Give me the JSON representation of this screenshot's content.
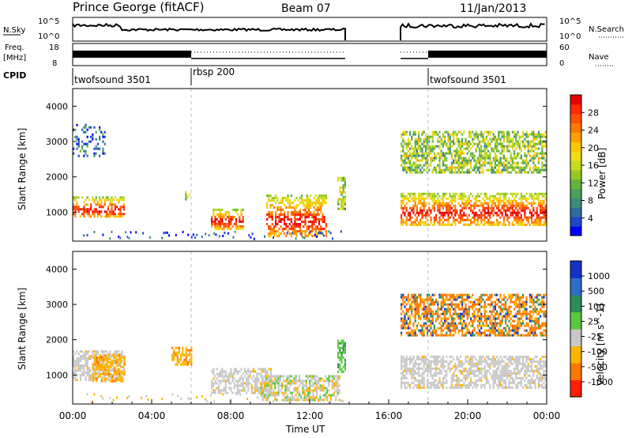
{
  "header": {
    "site": "Prince George (fitACF)",
    "beam": "Beam 07",
    "date": "11/Jan/2013"
  },
  "panels": {
    "nsky_label": "N.Sky",
    "nsearch_label": "N.Search",
    "freq_label_1": "Freq.",
    "freq_label_2": "[MHz]",
    "nave_label": "Nave",
    "cpid_label": "CPID",
    "nsky_ticks": [
      "10^5",
      "10^0"
    ],
    "nsearch_ticks": [
      "10^5",
      "10^0"
    ],
    "freq_ticks": [
      "18",
      "8"
    ],
    "nave_ticks": [
      "60",
      "0"
    ],
    "cpid_segments": [
      {
        "label": "twofsound 3501",
        "start_hr": 0
      },
      {
        "label": "rbsp 200",
        "start_hr": 6
      },
      {
        "label": "twofsound 3501",
        "start_hr": 18
      }
    ]
  },
  "chart_data": [
    {
      "type": "heatmap",
      "name": "power",
      "ylabel": "Slant Range [km]",
      "xlabel": "",
      "xlim": [
        0,
        24
      ],
      "ylim": [
        180,
        4500
      ],
      "yticks": [
        1000,
        2000,
        3000,
        4000
      ],
      "colorbar": {
        "label": "Power [dB]",
        "ticks": [
          "4",
          "8",
          "12",
          "16",
          "20",
          "24",
          "28"
        ],
        "range": [
          0,
          30
        ],
        "colors": [
          "#0000ff",
          "#1e46c8",
          "#2d6ea0",
          "#3c8c7d",
          "#4ba05a",
          "#64b43c",
          "#96c828",
          "#c8dc1e",
          "#f0dc14",
          "#ffc800",
          "#ffa000",
          "#ff7800",
          "#ff5000",
          "#ff2800",
          "#e60000"
        ]
      },
      "echo_regions": [
        {
          "t": [
            0.0,
            2.6
          ],
          "r": [
            850,
            1450
          ],
          "level": "high"
        },
        {
          "t": [
            0.0,
            1.6
          ],
          "r": [
            2600,
            3500
          ],
          "level": "low"
        },
        {
          "t": [
            5.6,
            5.9
          ],
          "r": [
            1350,
            1600
          ],
          "level": "mid"
        },
        {
          "t": [
            7.0,
            8.6
          ],
          "r": [
            550,
            1100
          ],
          "level": "high"
        },
        {
          "t": [
            9.8,
            12.8
          ],
          "r": [
            300,
            1500
          ],
          "level": "high"
        },
        {
          "t": [
            13.4,
            13.8
          ],
          "r": [
            1100,
            2000
          ],
          "level": "mid"
        },
        {
          "t": [
            16.6,
            24.0
          ],
          "r": [
            650,
            1550
          ],
          "level": "high"
        },
        {
          "t": [
            16.6,
            24.0
          ],
          "r": [
            2100,
            3300
          ],
          "level": "mid"
        }
      ]
    },
    {
      "type": "heatmap",
      "name": "velocity",
      "ylabel": "Slant Range [km]",
      "xlabel": "Time UT",
      "xlim": [
        0,
        24
      ],
      "ylim": [
        180,
        4500
      ],
      "yticks": [
        1000,
        2000,
        3000,
        4000
      ],
      "xticks": [
        "00:00",
        "04:00",
        "08:00",
        "12:00",
        "16:00",
        "20:00",
        "00:00"
      ],
      "colorbar": {
        "label": "Velocity [m s^-1]",
        "ticks": [
          "1000",
          "500",
          "100",
          "25",
          "-25",
          "-100",
          "-500",
          "-1000"
        ],
        "colors": [
          "#1432c8",
          "#2e6ec8",
          "#2e8c5a",
          "#5ac83c",
          "#c8c8c8",
          "#ffb400",
          "#ff7800",
          "#ff1e00"
        ]
      },
      "echo_regions": [
        {
          "t": [
            0.0,
            2.6
          ],
          "r": [
            850,
            1700
          ],
          "level": "ground"
        },
        {
          "t": [
            1.0,
            2.6
          ],
          "r": [
            850,
            1600
          ],
          "level": "neg"
        },
        {
          "t": [
            5.0,
            6.0
          ],
          "r": [
            1300,
            1800
          ],
          "level": "neg"
        },
        {
          "t": [
            7.0,
            10.0
          ],
          "r": [
            500,
            1200
          ],
          "level": "ground"
        },
        {
          "t": [
            9.5,
            13.5
          ],
          "r": [
            300,
            1000
          ],
          "level": "mix"
        },
        {
          "t": [
            13.4,
            13.8
          ],
          "r": [
            1100,
            2000
          ],
          "level": "pos"
        },
        {
          "t": [
            16.6,
            24.0
          ],
          "r": [
            650,
            1550
          ],
          "level": "ground"
        },
        {
          "t": [
            16.6,
            24.0
          ],
          "r": [
            2100,
            3300
          ],
          "level": "negpos"
        }
      ]
    }
  ]
}
